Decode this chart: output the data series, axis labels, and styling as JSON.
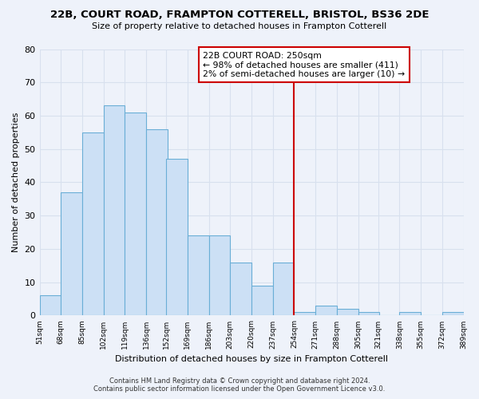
{
  "title": "22B, COURT ROAD, FRAMPTON COTTERELL, BRISTOL, BS36 2DE",
  "subtitle": "Size of property relative to detached houses in Frampton Cotterell",
  "xlabel": "Distribution of detached houses by size in Frampton Cotterell",
  "ylabel": "Number of detached properties",
  "bar_edges": [
    51,
    68,
    85,
    102,
    119,
    136,
    152,
    169,
    186,
    203,
    220,
    237,
    254,
    271,
    288,
    305,
    321,
    338,
    355,
    372,
    389
  ],
  "bar_heights": [
    6,
    37,
    55,
    63,
    61,
    56,
    47,
    24,
    24,
    16,
    9,
    16,
    1,
    3,
    2,
    1,
    0,
    1,
    0,
    1
  ],
  "bar_color": "#cce0f5",
  "bar_edge_color": "#6aaed6",
  "vline_x": 254,
  "vline_color": "#cc0000",
  "annotation_title": "22B COURT ROAD: 250sqm",
  "annotation_line1": "← 98% of detached houses are smaller (411)",
  "annotation_line2": "2% of semi-detached houses are larger (10) →",
  "annotation_box_color": "#ffffff",
  "annotation_border_color": "#cc0000",
  "ylim": [
    0,
    80
  ],
  "yticks": [
    0,
    10,
    20,
    30,
    40,
    50,
    60,
    70,
    80
  ],
  "tick_labels": [
    "51sqm",
    "68sqm",
    "85sqm",
    "102sqm",
    "119sqm",
    "136sqm",
    "152sqm",
    "169sqm",
    "186sqm",
    "203sqm",
    "220sqm",
    "237sqm",
    "254sqm",
    "271sqm",
    "288sqm",
    "305sqm",
    "321sqm",
    "338sqm",
    "355sqm",
    "372sqm",
    "389sqm"
  ],
  "background_color": "#eef2fa",
  "grid_color": "#d8e0ee",
  "footer_line1": "Contains HM Land Registry data © Crown copyright and database right 2024.",
  "footer_line2": "Contains public sector information licensed under the Open Government Licence v3.0."
}
